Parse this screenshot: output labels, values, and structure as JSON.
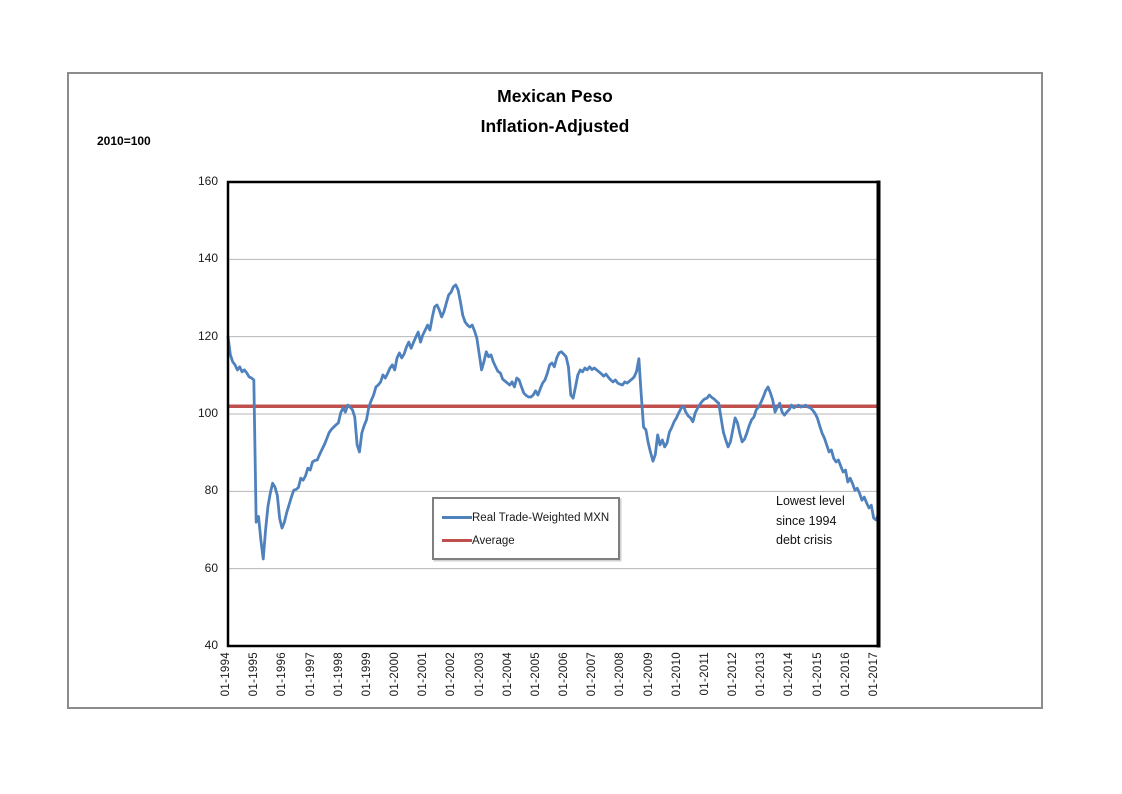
{
  "header": {
    "title_line1": "Mexican Peso",
    "title_line2": "Inflation-Adjusted",
    "units_note": "2010=100"
  },
  "legend": {
    "series1_label": "Real Trade-Weighted MXN",
    "series2_label": "Average"
  },
  "annotation": {
    "line1": "Lowest level",
    "line2": "since 1994",
    "line3": "debt crisis"
  },
  "colors": {
    "line_blue": "#4F81BD",
    "line_red": "#C0504D",
    "grid_gray": "#b7b7b7",
    "axis_black": "#000000",
    "frame_gray": "#8c8c8c"
  },
  "chart_data": {
    "type": "line",
    "title": "Mexican Peso Inflation-Adjusted",
    "units_note": "2010=100",
    "x_start": "01-1994",
    "x_end": "02-2017",
    "x_frequency": "monthly",
    "x_tick_labels": [
      "01-1994",
      "01-1995",
      "01-1996",
      "01-1997",
      "01-1998",
      "01-1999",
      "01-2000",
      "01-2001",
      "01-2002",
      "01-2003",
      "01-2004",
      "01-2005",
      "01-2006",
      "01-2007",
      "01-2008",
      "01-2009",
      "01-2010",
      "01-2011",
      "01-2012",
      "01-2013",
      "01-2014",
      "01-2015",
      "01-2016",
      "01-2017"
    ],
    "y_ticks": [
      160,
      140,
      120,
      100,
      80,
      60,
      40
    ],
    "ylim": [
      40,
      160
    ],
    "grid": "horizontal",
    "legend_position": "inside-bottom-center",
    "annotation_text": "Lowest level since 1994 debt crisis",
    "series": [
      {
        "name": "Real Trade-Weighted MXN",
        "color": "#4F81BD",
        "values": [
          120.0,
          115.3,
          113.5,
          112.7,
          111.4,
          112.2,
          110.9,
          111.4,
          110.6,
          109.6,
          109.3,
          108.8,
          72.0,
          73.5,
          67.4,
          62.5,
          70.0,
          76.0,
          79.5,
          82.1,
          81.1,
          79.0,
          73.0,
          70.5,
          72.0,
          74.5,
          76.5,
          78.5,
          80.3,
          80.5,
          81.0,
          83.4,
          82.9,
          84.0,
          86.0,
          85.5,
          87.6,
          88.0,
          88.1,
          89.5,
          90.8,
          92.0,
          93.5,
          95.1,
          96.0,
          96.6,
          97.2,
          97.7,
          100.3,
          101.6,
          100.5,
          102.3,
          101.8,
          101.1,
          99.2,
          92.0,
          90.2,
          95.1,
          97.0,
          98.5,
          101.8,
          103.5,
          104.9,
          107.0,
          107.5,
          108.3,
          110.1,
          109.3,
          110.5,
          111.9,
          112.7,
          111.4,
          114.5,
          115.8,
          114.5,
          115.5,
          117.3,
          118.6,
          117.0,
          118.5,
          119.9,
          121.2,
          118.6,
          120.5,
          121.7,
          123.0,
          121.7,
          125.0,
          127.7,
          128.2,
          126.9,
          125.1,
          126.5,
          128.7,
          130.8,
          131.5,
          132.9,
          133.4,
          132.1,
          129.0,
          125.5,
          123.8,
          123.0,
          122.5,
          123.0,
          121.5,
          119.6,
          115.5,
          111.4,
          113.5,
          116.1,
          114.8,
          115.3,
          113.5,
          112.2,
          111.0,
          110.6,
          109.0,
          108.5,
          108.0,
          107.5,
          108.3,
          107.0,
          109.3,
          108.8,
          107.0,
          105.4,
          104.8,
          104.4,
          104.4,
          104.9,
          106.0,
          104.9,
          106.5,
          108.0,
          108.8,
          110.5,
          112.7,
          113.2,
          112.2,
          114.5,
          115.8,
          116.1,
          115.5,
          114.8,
          112.2,
          104.9,
          104.1,
          107.0,
          110.1,
          111.4,
          110.9,
          111.9,
          111.4,
          112.2,
          111.5,
          111.9,
          111.4,
          110.9,
          110.4,
          109.8,
          110.3,
          109.5,
          108.8,
          108.3,
          108.8,
          108.0,
          107.7,
          107.5,
          108.3,
          108.0,
          108.5,
          109.0,
          109.6,
          111.0,
          114.3,
          105.0,
          96.6,
          95.9,
          92.5,
          90.0,
          87.8,
          89.5,
          94.6,
          92.0,
          93.3,
          91.5,
          92.5,
          95.3,
          96.5,
          98.0,
          99.0,
          100.3,
          101.5,
          102.0,
          100.5,
          99.5,
          99.0,
          98.0,
          100.3,
          101.5,
          102.5,
          103.3,
          103.9,
          104.1,
          104.9,
          104.3,
          103.9,
          103.3,
          102.8,
          99.0,
          95.3,
          93.3,
          91.5,
          92.8,
          95.9,
          99.0,
          97.7,
          95.0,
          92.8,
          93.5,
          95.1,
          97.0,
          98.5,
          99.2,
          101.1,
          101.8,
          103.0,
          104.4,
          106.0,
          107.0,
          105.5,
          103.6,
          100.5,
          101.8,
          102.8,
          100.5,
          99.7,
          100.5,
          101.1,
          102.3,
          101.6,
          102.0,
          102.3,
          101.8,
          102.0,
          102.3,
          101.8,
          101.6,
          101.0,
          100.2,
          99.0,
          97.0,
          95.1,
          93.8,
          92.0,
          90.2,
          90.7,
          88.5,
          87.6,
          88.1,
          86.5,
          85.0,
          85.5,
          82.4,
          83.4,
          82.0,
          80.3,
          80.8,
          79.5,
          77.7,
          78.5,
          77.0,
          75.7,
          76.4,
          73.1,
          72.6,
          74.0
        ]
      },
      {
        "name": "Average",
        "color": "#C0504D",
        "type": "constant",
        "value": 102
      }
    ]
  }
}
